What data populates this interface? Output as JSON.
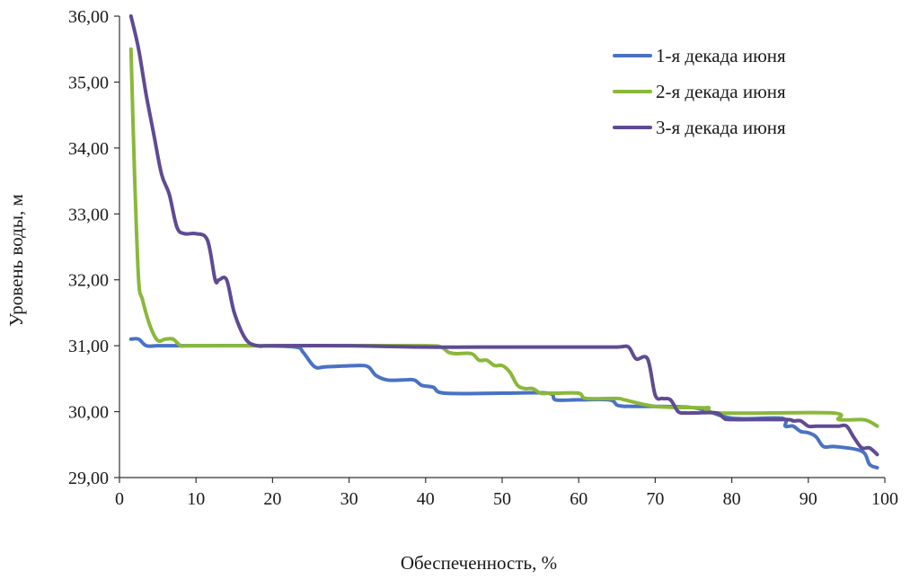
{
  "chart_data": {
    "type": "line",
    "title": "",
    "xlabel": "Обеспеченность, %",
    "ylabel": "Уровень воды, м",
    "xlim": [
      0,
      100
    ],
    "ylim": [
      29,
      36
    ],
    "x_ticks": [
      "0",
      "10",
      "20",
      "30",
      "40",
      "50",
      "60",
      "70",
      "80",
      "90",
      "100"
    ],
    "y_ticks": [
      "29,00",
      "30,00",
      "31,00",
      "32,00",
      "33,00",
      "34,00",
      "35,00",
      "36,00"
    ],
    "grid": false,
    "legend_position": "top-right",
    "series": [
      {
        "name": "1-я декада июня",
        "color": "#4a72c4",
        "x": [
          1.5,
          2.5,
          3.5,
          5,
          8,
          12,
          18,
          23,
          24,
          25.5,
          27,
          31,
          32.5,
          33.5,
          35,
          37,
          38.5,
          39.5,
          41,
          42.5,
          50,
          56,
          57,
          60,
          64,
          65,
          66,
          67,
          75,
          80,
          86.5,
          87,
          88,
          89,
          90,
          91,
          92,
          93.5,
          97,
          98,
          99
        ],
        "y": [
          31.1,
          31.1,
          31.0,
          31.0,
          31.0,
          31.0,
          31.0,
          30.98,
          30.9,
          30.68,
          30.68,
          30.7,
          30.68,
          30.55,
          30.48,
          30.48,
          30.48,
          30.4,
          30.37,
          30.28,
          30.28,
          30.28,
          30.18,
          30.18,
          30.18,
          30.1,
          30.08,
          30.08,
          30.06,
          29.9,
          29.9,
          29.78,
          29.78,
          29.7,
          29.68,
          29.62,
          29.47,
          29.47,
          29.4,
          29.2,
          29.15
        ]
      },
      {
        "name": "2-я декада июня",
        "color": "#8ab83b",
        "x": [
          1.5,
          2,
          2.5,
          3,
          4,
          5,
          6,
          7,
          8,
          9,
          15,
          20,
          30,
          40,
          42,
          43,
          44,
          46,
          47,
          48,
          49,
          50,
          51,
          52,
          53,
          54,
          55,
          56,
          57,
          60,
          61,
          65,
          66,
          70,
          76,
          77,
          78,
          93,
          94,
          97,
          98,
          99
        ],
        "y": [
          35.5,
          33.5,
          32.0,
          31.7,
          31.3,
          31.08,
          31.1,
          31.1,
          31.0,
          31.0,
          31.0,
          31.0,
          31.0,
          31.0,
          30.98,
          30.9,
          30.88,
          30.88,
          30.78,
          30.78,
          30.7,
          30.7,
          30.6,
          30.4,
          30.35,
          30.35,
          30.28,
          30.28,
          30.28,
          30.28,
          30.2,
          30.2,
          30.18,
          30.08,
          30.06,
          30.06,
          29.98,
          29.98,
          29.88,
          29.88,
          29.85,
          29.78
        ]
      },
      {
        "name": "3-я декада июня",
        "color": "#5f4b93",
        "x": [
          1.5,
          2.5,
          3.5,
          4.5,
          5.5,
          6.5,
          7.5,
          8.5,
          10,
          11.5,
          12.5,
          13,
          14,
          15,
          16.5,
          18,
          20,
          30,
          40,
          50,
          60,
          65,
          66.5,
          67.5,
          69,
          70,
          71,
          72,
          73,
          74,
          75,
          78,
          79,
          80,
          87,
          88,
          89,
          90,
          91,
          93,
          94,
          95,
          96,
          97,
          98,
          99
        ],
        "y": [
          36.0,
          35.5,
          34.8,
          34.2,
          33.6,
          33.3,
          32.8,
          32.7,
          32.7,
          32.6,
          32.0,
          32.0,
          32.0,
          31.5,
          31.1,
          31.0,
          31.0,
          31.0,
          30.98,
          30.98,
          30.98,
          30.98,
          30.98,
          30.8,
          30.8,
          30.25,
          30.2,
          30.18,
          30.0,
          29.98,
          29.98,
          29.98,
          29.9,
          29.88,
          29.88,
          29.86,
          29.86,
          29.78,
          29.78,
          29.78,
          29.78,
          29.78,
          29.6,
          29.45,
          29.45,
          29.35
        ]
      }
    ]
  }
}
